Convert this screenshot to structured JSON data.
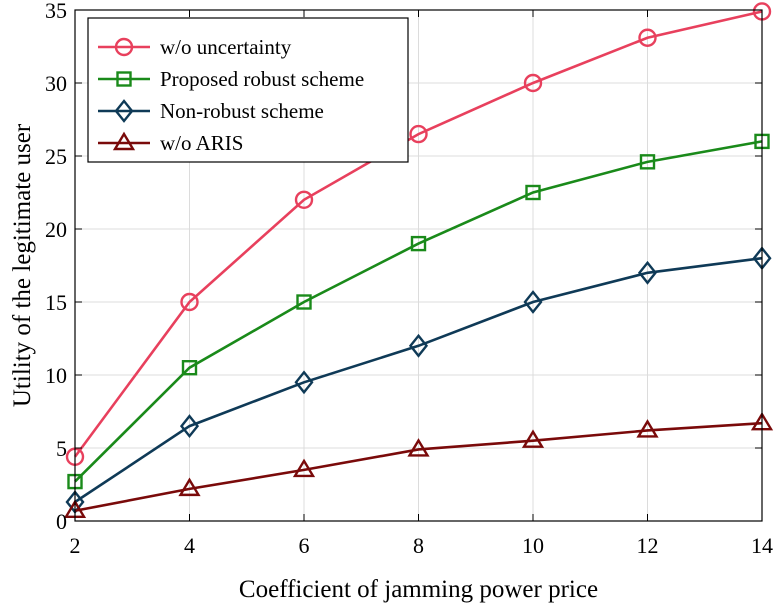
{
  "chart_data": {
    "type": "line",
    "title": "",
    "xlabel": "Coefficient of jamming power price",
    "ylabel": "Utility of the legitimate user",
    "x": [
      2,
      4,
      6,
      8,
      10,
      12,
      14
    ],
    "xlim": [
      2,
      14
    ],
    "ylim": [
      0,
      35
    ],
    "xticks": [
      "2",
      "4",
      "6",
      "8",
      "10",
      "12",
      "14"
    ],
    "yticks": [
      "0",
      "5",
      "10",
      "15",
      "20",
      "25",
      "30",
      "35"
    ],
    "grid": true,
    "legend_position": "top-left",
    "series": [
      {
        "name": "w/o uncertainty",
        "color": "#e8405d",
        "marker": "circle",
        "values": [
          4.4,
          15,
          22,
          26.5,
          30,
          33.1,
          34.9
        ]
      },
      {
        "name": "Proposed robust scheme",
        "color": "#1a8a1a",
        "marker": "square",
        "values": [
          2.7,
          10.5,
          15,
          19,
          22.5,
          24.6,
          26
        ]
      },
      {
        "name": "Non-robust scheme",
        "color": "#0f3a57",
        "marker": "diamond",
        "values": [
          1.3,
          6.5,
          9.5,
          12,
          15,
          17,
          18
        ]
      },
      {
        "name": "w/o ARIS",
        "color": "#7a0a0a",
        "marker": "triangle",
        "values": [
          0.7,
          2.2,
          3.5,
          4.9,
          5.5,
          6.2,
          6.7
        ]
      }
    ]
  }
}
